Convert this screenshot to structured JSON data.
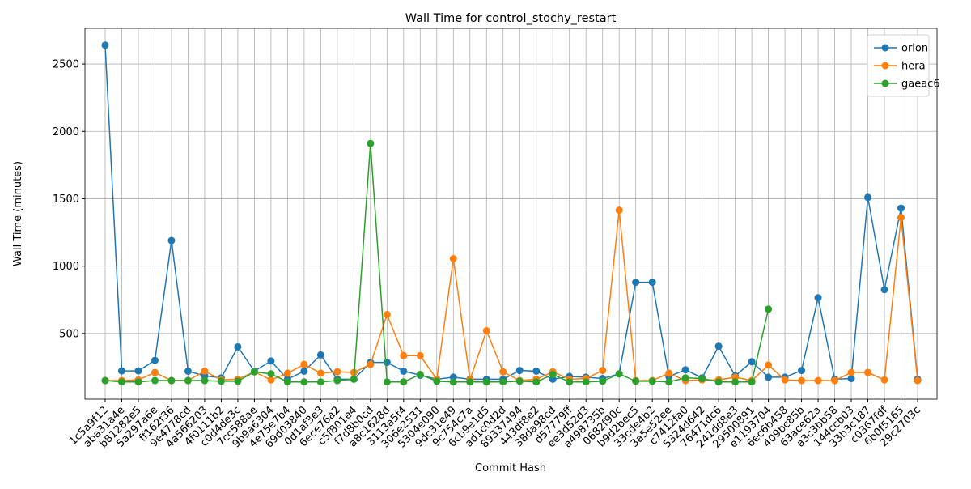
{
  "chart_data": {
    "type": "line",
    "title": "Wall Time for control_stochy_restart",
    "xlabel": "Commit Hash",
    "ylabel": "Wall Time (minutes)",
    "categories": [
      "1c5a9f12",
      "aba31a4e",
      "b81282e5",
      "5a297a6e",
      "ff162f36",
      "9e4778cd",
      "4a566203",
      "4f0111b2",
      "c0d4de3c",
      "7cc588ae",
      "9b9a6304",
      "4e75e7b4",
      "69d03840",
      "0d1af3e3",
      "6ece76a2",
      "c5f801e4",
      "f7d8b0cd",
      "a8c1628d",
      "3113a5f4",
      "306e2531",
      "5304e090",
      "9dc31e49",
      "9c754c7a",
      "6cb9e1d5",
      "ad1c0d2d",
      "89337494",
      "443df8e2",
      "38da98cd",
      "d57779ff",
      "ee3d52d3",
      "a498735b",
      "0682f90c",
      "b9d2bec5",
      "33cde4b2",
      "3a5e52ee",
      "c7412fa0",
      "5324d642",
      "76471dc6",
      "241dd8e3",
      "29500891",
      "e1193704",
      "6ec6b458",
      "409bc85b",
      "63ace62a",
      "a3c3bb58",
      "144ccb03",
      "33b3c187",
      "c0367fdf",
      "6b0f5165",
      "29c2703c"
    ],
    "series": [
      {
        "name": "orion",
        "color": "#1f77b4",
        "values": [
          2640,
          222,
          222,
          300,
          1190,
          220,
          185,
          170,
          400,
          220,
          295,
          160,
          220,
          340,
          160,
          160,
          285,
          285,
          220,
          190,
          160,
          175,
          160,
          160,
          160,
          225,
          220,
          160,
          180,
          175,
          165,
          200,
          880,
          880,
          180,
          230,
          170,
          405,
          185,
          290,
          175,
          175,
          225,
          765,
          160,
          165,
          1510,
          825,
          1430,
          160
        ]
      },
      {
        "name": "hera",
        "color": "#ff7f0e",
        "values": [
          150,
          150,
          155,
          210,
          150,
          150,
          220,
          155,
          160,
          215,
          155,
          205,
          270,
          205,
          215,
          210,
          270,
          640,
          335,
          335,
          160,
          1055,
          155,
          520,
          215,
          150,
          160,
          215,
          160,
          165,
          225,
          1415,
          150,
          150,
          205,
          150,
          155,
          155,
          175,
          150,
          265,
          155,
          150,
          150,
          150,
          210,
          210,
          155,
          1360,
          150
        ]
      },
      {
        "name": "gaeac6",
        "color": "#2ca02c",
        "values": [
          150,
          140,
          140,
          150,
          150,
          150,
          150,
          145,
          145,
          215,
          200,
          140,
          140,
          140,
          150,
          160,
          1910,
          140,
          140,
          195,
          145,
          140,
          140,
          140,
          140,
          145,
          140,
          195,
          140,
          140,
          145,
          200,
          145,
          145,
          140,
          170,
          165,
          140,
          140,
          140,
          680,
          null,
          null,
          null,
          null,
          null,
          null,
          null,
          null,
          null
        ]
      }
    ],
    "ylim": [
      12,
      2765
    ],
    "yticks": [
      500,
      1000,
      1500,
      2000,
      2500
    ],
    "grid": true,
    "legend": "upper right"
  }
}
